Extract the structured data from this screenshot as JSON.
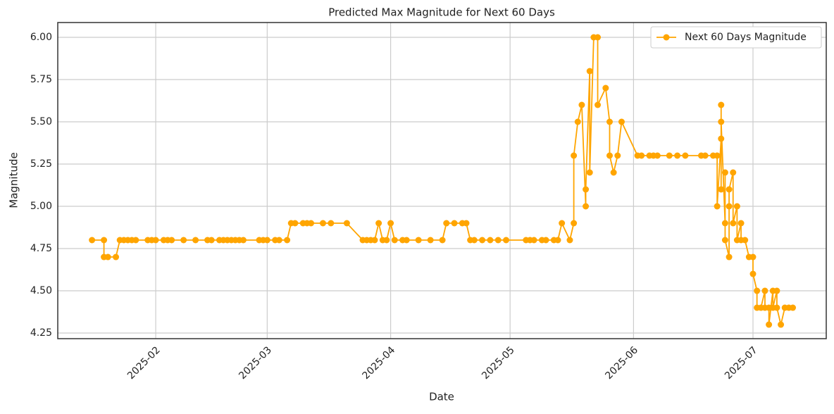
{
  "chart_data": {
    "type": "line",
    "title": "Predicted Max Magnitude for Next 60 Days",
    "x_label": "Date",
    "y_label": "Magnitude",
    "x": [
      15,
      18,
      18,
      19,
      21,
      22,
      23,
      24,
      25,
      26,
      29,
      30,
      31,
      33,
      34,
      35,
      38,
      41,
      44,
      45,
      47,
      48,
      49,
      50,
      51,
      52,
      53,
      57,
      58,
      59,
      61,
      62,
      64,
      65,
      66,
      68,
      69,
      70,
      73,
      75,
      79,
      83,
      84,
      85,
      86,
      87,
      88,
      89,
      90,
      91,
      93,
      94,
      97,
      100,
      103,
      104,
      106,
      108,
      109,
      110,
      111,
      113,
      115,
      117,
      119,
      124,
      125,
      126,
      128,
      129,
      131,
      132,
      133,
      135,
      136,
      136,
      137,
      138,
      139,
      139,
      140,
      140,
      141,
      142,
      142,
      144,
      145,
      145,
      146,
      147,
      148,
      152,
      153,
      155,
      156,
      157,
      160,
      162,
      164,
      168,
      169,
      171,
      172,
      172,
      173,
      173,
      173,
      173,
      174,
      174,
      174,
      175,
      175,
      175,
      176,
      176,
      177,
      177,
      178,
      178,
      179,
      180,
      181,
      181,
      182,
      182,
      183,
      184,
      184,
      185,
      185,
      186,
      186,
      187,
      187,
      188,
      189,
      190,
      191
    ],
    "series": [
      {
        "name": "Next 60 Days Magnitude",
        "color": "#ffa500",
        "values": [
          4.8,
          4.8,
          4.7,
          4.7,
          4.7,
          4.8,
          4.8,
          4.8,
          4.8,
          4.8,
          4.8,
          4.8,
          4.8,
          4.8,
          4.8,
          4.8,
          4.8,
          4.8,
          4.8,
          4.8,
          4.8,
          4.8,
          4.8,
          4.8,
          4.8,
          4.8,
          4.8,
          4.8,
          4.8,
          4.8,
          4.8,
          4.8,
          4.8,
          4.9,
          4.9,
          4.9,
          4.9,
          4.9,
          4.9,
          4.9,
          4.9,
          4.8,
          4.8,
          4.8,
          4.8,
          4.9,
          4.8,
          4.8,
          4.9,
          4.8,
          4.8,
          4.8,
          4.8,
          4.8,
          4.8,
          4.9,
          4.9,
          4.9,
          4.9,
          4.8,
          4.8,
          4.8,
          4.8,
          4.8,
          4.8,
          4.8,
          4.8,
          4.8,
          4.8,
          4.8,
          4.8,
          4.8,
          4.9,
          4.8,
          4.9,
          5.3,
          5.5,
          5.6,
          5.0,
          5.1,
          5.8,
          5.2,
          6.0,
          6.0,
          5.6,
          5.7,
          5.5,
          5.3,
          5.2,
          5.3,
          5.5,
          5.3,
          5.3,
          5.3,
          5.3,
          5.3,
          5.3,
          5.3,
          5.3,
          5.3,
          5.3,
          5.3,
          5.3,
          5.0,
          5.4,
          5.6,
          5.1,
          5.5,
          4.9,
          5.2,
          4.8,
          4.7,
          5.0,
          5.1,
          5.2,
          4.9,
          5.0,
          4.8,
          4.9,
          4.8,
          4.8,
          4.7,
          4.7,
          4.6,
          4.5,
          4.4,
          4.4,
          4.5,
          4.4,
          4.4,
          4.3,
          4.5,
          4.4,
          4.5,
          4.4,
          4.3,
          4.4,
          4.4,
          4.4
        ]
      }
    ],
    "xlim": [
      6.4,
      199.4
    ],
    "xticks": [
      {
        "value": 31,
        "label": "2025-02"
      },
      {
        "value": 59,
        "label": "2025-03"
      },
      {
        "value": 90,
        "label": "2025-04"
      },
      {
        "value": 120,
        "label": "2025-05"
      },
      {
        "value": 151,
        "label": "2025-06"
      },
      {
        "value": 181,
        "label": "2025-07"
      }
    ],
    "ylim": [
      4.2167,
      6.0875
    ],
    "yticks": [
      {
        "value": 4.25,
        "label": "4.25"
      },
      {
        "value": 4.5,
        "label": "4.50"
      },
      {
        "value": 4.75,
        "label": "4.75"
      },
      {
        "value": 5.0,
        "label": "5.00"
      },
      {
        "value": 5.25,
        "label": "5.25"
      },
      {
        "value": 5.5,
        "label": "5.50"
      },
      {
        "value": 5.75,
        "label": "5.75"
      },
      {
        "value": 6.0,
        "label": "6.00"
      }
    ],
    "grid": true,
    "legend": "upper right"
  }
}
